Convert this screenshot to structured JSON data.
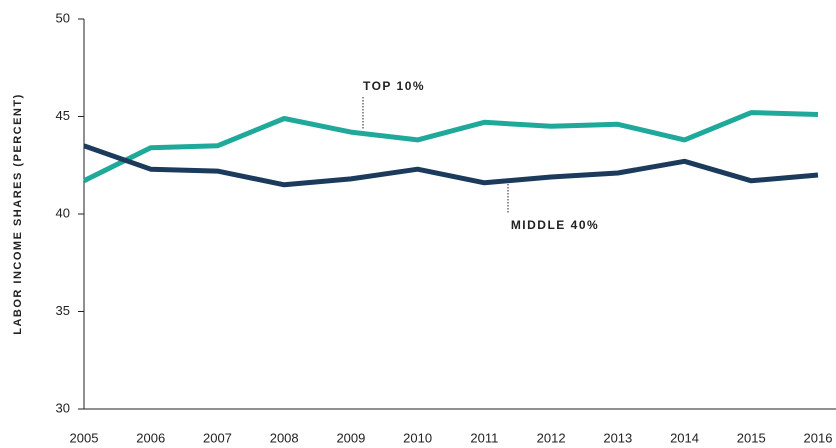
{
  "chart_data": {
    "type": "line",
    "y_label": "LABOR INCOME SHARES (PERCENT)",
    "x": [
      2005,
      2006,
      2007,
      2008,
      2009,
      2010,
      2011,
      2012,
      2013,
      2014,
      2015,
      2016
    ],
    "xlim": [
      2005,
      2016
    ],
    "xticks": [
      2005,
      2006,
      2007,
      2008,
      2009,
      2010,
      2011,
      2012,
      2013,
      2014,
      2015,
      2016
    ],
    "ylim": [
      30,
      50
    ],
    "yticks": [
      30,
      35,
      40,
      45,
      50
    ],
    "series": [
      {
        "name": "TOP 10%",
        "color": "#1fa99b",
        "values": [
          41.7,
          43.4,
          43.5,
          44.9,
          44.2,
          43.8,
          44.7,
          44.5,
          44.6,
          43.8,
          45.2,
          45.1
        ]
      },
      {
        "name": "MIDDLE 40%",
        "color": "#1b3a5c",
        "values": [
          43.5,
          42.3,
          42.2,
          41.5,
          41.8,
          42.3,
          41.6,
          41.9,
          42.1,
          42.7,
          41.7,
          42.0
        ]
      }
    ]
  }
}
